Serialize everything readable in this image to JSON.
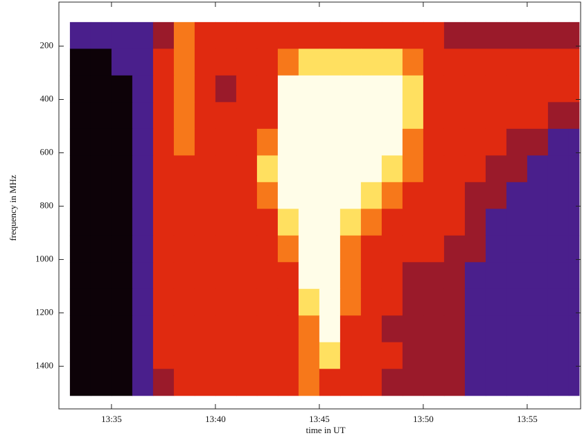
{
  "chart_data": {
    "type": "heatmap",
    "xlabel": "time in UT",
    "ylabel": "frequency in MHz",
    "x_edges": [
      813,
      814,
      815,
      816,
      817,
      818,
      819,
      820,
      821,
      822,
      823,
      824,
      825,
      826,
      827,
      828,
      829,
      830,
      831,
      832,
      833,
      834,
      835,
      836,
      837,
      837.5
    ],
    "y_edges": [
      110,
      210,
      310,
      410,
      510,
      610,
      710,
      810,
      910,
      1010,
      1110,
      1210,
      1310,
      1410,
      1510
    ],
    "z": [
      [
        1,
        1,
        1,
        1,
        2,
        4,
        3,
        3,
        3,
        3,
        3,
        3,
        3,
        3,
        3,
        3,
        3,
        3,
        2,
        2,
        2,
        2,
        2,
        2,
        2
      ],
      [
        0,
        0,
        1,
        1,
        3,
        4,
        3,
        3,
        3,
        3,
        4,
        5,
        5,
        5,
        5,
        5,
        4,
        3,
        3,
        3,
        3,
        3,
        3,
        3,
        3
      ],
      [
        0,
        0,
        0,
        1,
        3,
        4,
        3,
        2,
        3,
        3,
        6,
        6,
        6,
        6,
        6,
        6,
        5,
        3,
        3,
        3,
        3,
        3,
        3,
        3,
        3
      ],
      [
        0,
        0,
        0,
        1,
        3,
        4,
        3,
        3,
        3,
        3,
        6,
        6,
        6,
        6,
        6,
        6,
        5,
        3,
        3,
        3,
        3,
        3,
        3,
        2,
        2
      ],
      [
        0,
        0,
        0,
        1,
        3,
        4,
        3,
        3,
        3,
        4,
        6,
        6,
        6,
        6,
        6,
        6,
        4,
        3,
        3,
        3,
        3,
        2,
        2,
        1,
        1
      ],
      [
        0,
        0,
        0,
        1,
        3,
        3,
        3,
        3,
        3,
        5,
        6,
        6,
        6,
        6,
        6,
        5,
        4,
        3,
        3,
        3,
        2,
        2,
        1,
        1,
        1
      ],
      [
        0,
        0,
        0,
        1,
        3,
        3,
        3,
        3,
        3,
        4,
        6,
        6,
        6,
        6,
        5,
        4,
        3,
        3,
        3,
        2,
        2,
        1,
        1,
        1,
        1
      ],
      [
        0,
        0,
        0,
        1,
        3,
        3,
        3,
        3,
        3,
        3,
        5,
        6,
        6,
        5,
        4,
        3,
        3,
        3,
        3,
        2,
        1,
        1,
        1,
        1,
        1
      ],
      [
        0,
        0,
        0,
        1,
        3,
        3,
        3,
        3,
        3,
        3,
        4,
        6,
        6,
        4,
        3,
        3,
        3,
        3,
        2,
        2,
        1,
        1,
        1,
        1,
        1
      ],
      [
        0,
        0,
        0,
        1,
        3,
        3,
        3,
        3,
        3,
        3,
        3,
        6,
        6,
        4,
        3,
        3,
        2,
        2,
        2,
        1,
        1,
        1,
        1,
        1,
        1
      ],
      [
        0,
        0,
        0,
        1,
        3,
        3,
        3,
        3,
        3,
        3,
        3,
        5,
        6,
        4,
        3,
        3,
        2,
        2,
        2,
        1,
        1,
        1,
        1,
        1,
        1
      ],
      [
        0,
        0,
        0,
        1,
        3,
        3,
        3,
        3,
        3,
        3,
        3,
        4,
        6,
        3,
        3,
        2,
        2,
        2,
        2,
        1,
        1,
        1,
        1,
        1,
        1
      ],
      [
        0,
        0,
        0,
        1,
        3,
        3,
        3,
        3,
        3,
        3,
        3,
        4,
        5,
        3,
        3,
        3,
        2,
        2,
        2,
        1,
        1,
        1,
        1,
        1,
        1
      ],
      [
        0,
        0,
        0,
        1,
        2,
        3,
        3,
        3,
        3,
        3,
        3,
        4,
        3,
        3,
        3,
        2,
        2,
        2,
        2,
        1,
        1,
        1,
        1,
        1,
        1
      ]
    ],
    "colors": [
      "#0d0208",
      "#4a1f8c",
      "#9a1a2a",
      "#e02a10",
      "#f7781a",
      "#ffe060",
      "#fffde8"
    ],
    "xlim": [
      812.47,
      837.57
    ],
    "xticks": [
      {
        "value": 815,
        "label": "13:35"
      },
      {
        "value": 820,
        "label": "13:40"
      },
      {
        "value": 825,
        "label": "13:45"
      },
      {
        "value": 830,
        "label": "13:50"
      },
      {
        "value": 835,
        "label": "13:55"
      }
    ],
    "ylim": [
      1560,
      35
    ],
    "yticks": [
      200,
      400,
      600,
      800,
      1000,
      1200,
      1400
    ]
  }
}
